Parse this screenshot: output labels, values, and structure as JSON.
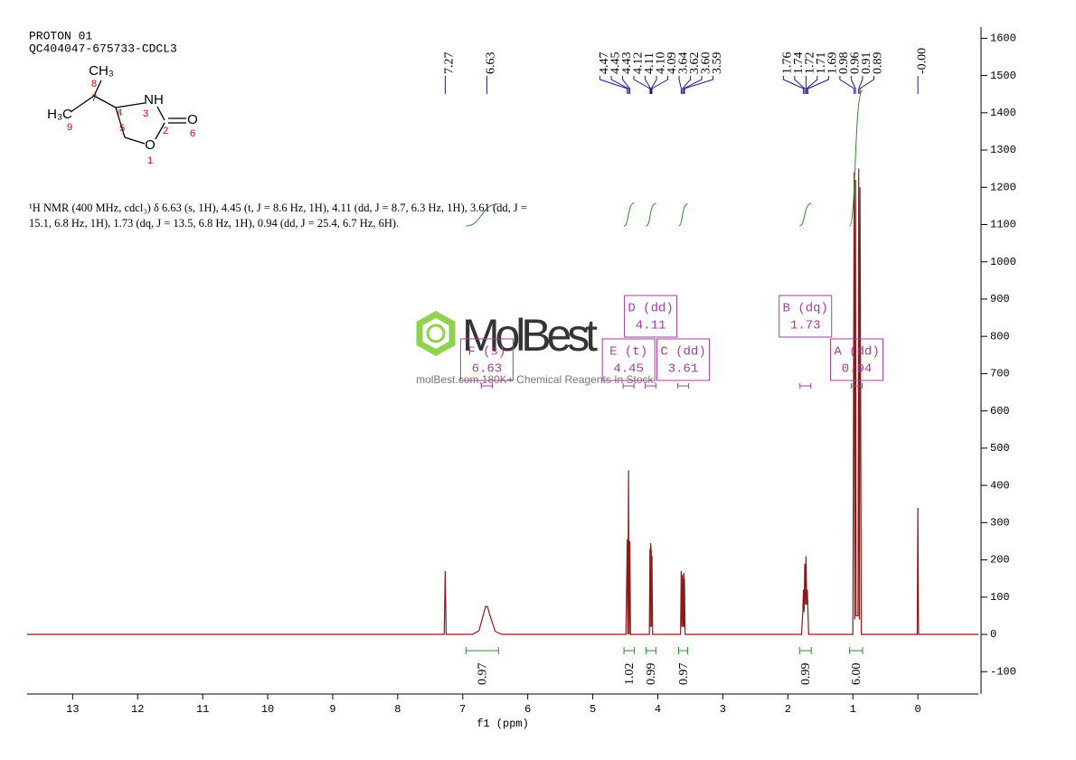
{
  "chart_data": {
    "type": "line",
    "header": [
      "PROTON 01",
      "QC404047-675733-CDCL3"
    ],
    "description": "¹H NMR (400 MHz, cdcl₃) δ 6.63 (s, 1H), 4.45 (t, J = 8.6 Hz, 1H), 4.11 (dd, J = 8.7, 6.3 Hz, 1H), 3.61 (dd, J = 15.1, 6.8 Hz, 1H), 1.73 (dq, J = 13.5, 6.8 Hz, 1H), 0.94 (dd, J = 25.4, 6.7 Hz, 6H).",
    "x_label": "f1 (ppm)",
    "watermark": [
      "MolBest",
      "molBest.com,180K+ Chemical Reagents In Stock."
    ],
    "molecule": {
      "atoms": [
        "CH₃",
        "NH",
        "H₃C",
        "O",
        "O"
      ],
      "numbers": [
        "8",
        "7",
        "4",
        "3",
        "2",
        "6",
        "5",
        "1",
        "9"
      ]
    },
    "xlim": [
      13.7,
      -0.93
    ],
    "xticks": [
      13,
      12,
      11,
      10,
      9,
      8,
      7,
      6,
      5,
      4,
      3,
      2,
      1,
      0
    ],
    "ylim": [
      -160,
      1630
    ],
    "yticks": [
      -100,
      0,
      100,
      200,
      300,
      400,
      500,
      600,
      700,
      800,
      900,
      1000,
      1100,
      1200,
      1300,
      1400,
      1500,
      1600
    ],
    "series": [
      {
        "name": "spectrum",
        "color": "#8b1a1a",
        "x": [
          13.7,
          7.285,
          7.27,
          7.255,
          6.85,
          6.75,
          6.68,
          6.65,
          6.62,
          6.58,
          6.5,
          6.4,
          4.49,
          4.47,
          4.46,
          4.45,
          4.44,
          4.43,
          4.42,
          4.13,
          4.12,
          4.115,
          4.11,
          4.1,
          4.095,
          4.09,
          4.08,
          3.65,
          3.64,
          3.63,
          3.62,
          3.61,
          3.6,
          3.595,
          3.59,
          3.58,
          1.79,
          1.77,
          1.76,
          1.75,
          1.74,
          1.73,
          1.72,
          1.71,
          1.7,
          1.69,
          1.68,
          1.0,
          0.98,
          0.97,
          0.96,
          0.95,
          0.935,
          0.92,
          0.91,
          0.9,
          0.89,
          0.87,
          0.01,
          0.0,
          -0.01,
          -0.93
        ],
        "values": [
          0,
          0,
          170,
          0,
          0,
          10,
          55,
          75,
          75,
          50,
          8,
          0,
          0,
          255,
          0,
          440,
          0,
          250,
          0,
          0,
          230,
          20,
          245,
          220,
          20,
          210,
          0,
          0,
          170,
          20,
          160,
          20,
          165,
          20,
          150,
          0,
          0,
          60,
          120,
          60,
          190,
          80,
          210,
          80,
          120,
          60,
          0,
          0,
          1240,
          40,
          1220,
          50,
          50,
          50,
          1250,
          40,
          1200,
          0,
          0,
          340,
          0,
          0
        ]
      }
    ],
    "peaks": [
      {
        "value": 7.27,
        "label": "7.27"
      },
      {
        "value": 6.63,
        "label": "6.63"
      },
      {
        "value": 4.47,
        "label": "4.47"
      },
      {
        "value": 4.45,
        "label": "4.45"
      },
      {
        "value": 4.43,
        "label": "4.43"
      },
      {
        "value": 4.12,
        "label": "4.12"
      },
      {
        "value": 4.11,
        "label": "4.11"
      },
      {
        "value": 4.1,
        "label": "4.10"
      },
      {
        "value": 4.09,
        "label": "4.09"
      },
      {
        "value": 3.64,
        "label": "3.64"
      },
      {
        "value": 3.62,
        "label": "3.62"
      },
      {
        "value": 3.6,
        "label": "3.60"
      },
      {
        "value": 3.59,
        "label": "3.59"
      },
      {
        "value": 1.76,
        "label": "1.76"
      },
      {
        "value": 1.74,
        "label": "1.74"
      },
      {
        "value": 1.72,
        "label": "1.72"
      },
      {
        "value": 1.71,
        "label": "1.71"
      },
      {
        "value": 1.69,
        "label": "1.69"
      },
      {
        "value": 0.98,
        "label": "0.98"
      },
      {
        "value": 0.96,
        "label": "0.96"
      },
      {
        "value": 0.91,
        "label": "0.91"
      },
      {
        "value": 0.89,
        "label": "0.89"
      },
      {
        "value": 0,
        "label": "-0.00"
      }
    ],
    "integrals": [
      {
        "value": 0.97,
        "xrange": [
          6.95,
          6.45
        ]
      },
      {
        "value": 1.02,
        "xrange": [
          4.52,
          4.36
        ]
      },
      {
        "value": 0.99,
        "xrange": [
          4.18,
          4.03
        ]
      },
      {
        "value": 0.97,
        "xrange": [
          3.68,
          3.54
        ]
      },
      {
        "value": 0.99,
        "xrange": [
          1.82,
          1.64
        ]
      },
      {
        "value": 6.0,
        "label": "6.00",
        "xrange": [
          1.05,
          0.85
        ]
      }
    ],
    "multiplets": [
      {
        "label": "F (s)",
        "shift": 6.63
      },
      {
        "label": "E (t)",
        "shift": 4.45
      },
      {
        "label": "D (dd)",
        "shift": 4.11
      },
      {
        "label": "C (dd)",
        "shift": 3.61
      },
      {
        "label": "B (dq)",
        "shift": 1.73
      },
      {
        "label": "A (dd)",
        "shift": 0.94
      }
    ]
  }
}
